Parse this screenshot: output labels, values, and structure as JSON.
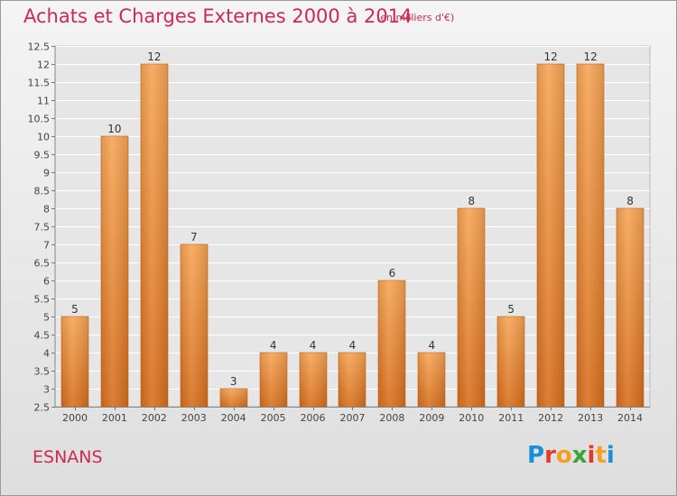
{
  "header": {
    "title": "Achats et Charges Externes 2000 à 2014",
    "unit": "(en milliers d'€)"
  },
  "footer": {
    "city": "ESNANS",
    "logo": "Proxiti",
    "logo_colors": [
      "#1a8fd6",
      "#e23a2a",
      "#f2a01f",
      "#3aa33a",
      "#e23a2a",
      "#f2a01f",
      "#1a8fd6"
    ]
  },
  "chart_data": {
    "type": "bar",
    "title": "Achats et Charges Externes 2000 à 2014",
    "subtitle": "(en milliers d'€)",
    "xlabel": "",
    "ylabel": "",
    "categories": [
      "2000",
      "2001",
      "2002",
      "2003",
      "2004",
      "2005",
      "2006",
      "2007",
      "2008",
      "2009",
      "2010",
      "2011",
      "2012",
      "2013",
      "2014"
    ],
    "values": [
      5,
      10,
      12,
      7,
      3,
      4,
      4,
      4,
      6,
      4,
      8,
      5,
      12,
      12,
      8
    ],
    "data_labels": [
      "5",
      "10",
      "12",
      "7",
      "3",
      "4",
      "4",
      "4",
      "6",
      "4",
      "8",
      "5",
      "12",
      "12",
      "8"
    ],
    "ylim": [
      2.5,
      12.5
    ],
    "yticks": [
      "2.5",
      "3",
      "3.5",
      "4",
      "4.5",
      "5",
      "5.5",
      "6",
      "6.5",
      "7",
      "7.5",
      "8",
      "8.5",
      "9",
      "9.5",
      "10",
      "10.5",
      "11",
      "11.5",
      "12",
      "12.5"
    ],
    "grid": true,
    "bar_color_top": "#f7a555",
    "bar_color_bottom": "#d86f1e"
  }
}
